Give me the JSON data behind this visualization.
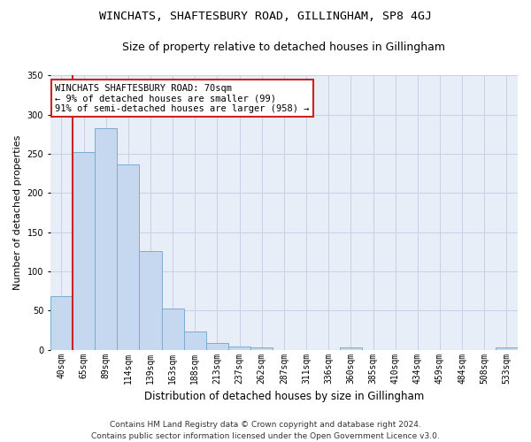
{
  "title": "WINCHATS, SHAFTESBURY ROAD, GILLINGHAM, SP8 4GJ",
  "subtitle": "Size of property relative to detached houses in Gillingham",
  "xlabel": "Distribution of detached houses by size in Gillingham",
  "ylabel": "Number of detached properties",
  "bar_color": "#c5d8f0",
  "bar_edge_color": "#7aadd4",
  "bg_color": "#e8eef8",
  "grid_color": "#c8d0e8",
  "vline_color": "#cc2222",
  "vline_x": 0.5,
  "annotation_text": "WINCHATS SHAFTESBURY ROAD: 70sqm\n← 9% of detached houses are smaller (99)\n91% of semi-detached houses are larger (958) →",
  "annotation_box_color": "white",
  "annotation_box_edge": "#cc2222",
  "categories": [
    "40sqm",
    "65sqm",
    "89sqm",
    "114sqm",
    "139sqm",
    "163sqm",
    "188sqm",
    "213sqm",
    "237sqm",
    "262sqm",
    "287sqm",
    "311sqm",
    "336sqm",
    "360sqm",
    "385sqm",
    "410sqm",
    "434sqm",
    "459sqm",
    "484sqm",
    "508sqm",
    "533sqm"
  ],
  "values": [
    68,
    252,
    283,
    236,
    126,
    53,
    23,
    9,
    4,
    3,
    0,
    0,
    0,
    3,
    0,
    0,
    0,
    0,
    0,
    0,
    3
  ],
  "footer": "Contains HM Land Registry data © Crown copyright and database right 2024.\nContains public sector information licensed under the Open Government Licence v3.0.",
  "ylim": [
    0,
    350
  ],
  "yticks": [
    0,
    50,
    100,
    150,
    200,
    250,
    300,
    350
  ],
  "title_fontsize": 9.5,
  "subtitle_fontsize": 9,
  "xlabel_fontsize": 8.5,
  "ylabel_fontsize": 8,
  "tick_fontsize": 7,
  "footer_fontsize": 6.5,
  "annot_fontsize": 7.5
}
